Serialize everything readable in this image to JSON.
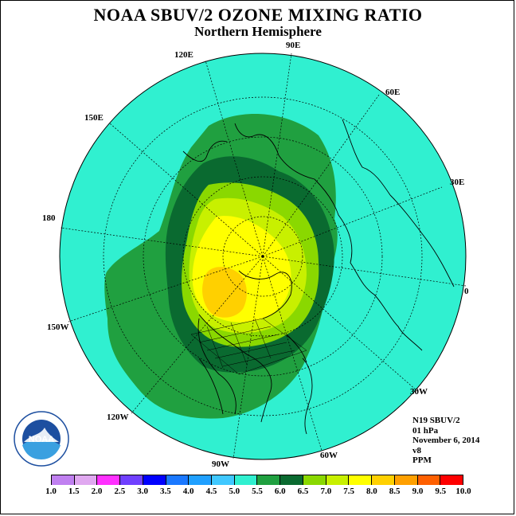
{
  "title": "NOAA SBUV/2 OZONE MIXING RATIO",
  "subtitle": "Northern Hemisphere",
  "longitudes": {
    "lon_90e": "90E",
    "lon_60e": "60E",
    "lon_30e": "30E",
    "lon_0": "0",
    "lon_30w": "30W",
    "lon_60w": "60W",
    "lon_90w": "90W",
    "lon_120w": "120W",
    "lon_150w": "150W",
    "lon_180": "180",
    "lon_150e": "150E",
    "lon_120e": "120E"
  },
  "info": {
    "satellite": "N19 SBUV/2",
    "level": "01 hPa",
    "date": "November 6, 2014",
    "version": "v8",
    "units": "PPM"
  },
  "legend": {
    "labels": [
      "1.0",
      "1.5",
      "2.0",
      "2.5",
      "3.0",
      "3.5",
      "4.0",
      "4.5",
      "5.0",
      "5.5",
      "6.0",
      "6.5",
      "7.0",
      "7.5",
      "8.0",
      "8.5",
      "9.0",
      "9.5",
      "10.0"
    ],
    "colors": [
      "#c080f0",
      "#e0a8f0",
      "#ff30ff",
      "#7040ff",
      "#0000ff",
      "#1a78ff",
      "#20a0ff",
      "#40c8ff",
      "#30f0d0",
      "#20a040",
      "#0a6a30",
      "#8ad800",
      "#c8f000",
      "#ffff00",
      "#ffd000",
      "#ffa000",
      "#ff6000",
      "#ff0000",
      "#8b5a3c"
    ]
  },
  "logo_text": "NOAA",
  "colors": {
    "ocean_band": "#30f0d0",
    "ring_5_5": "#20a040",
    "ring_6_0": "#0a6a30",
    "ring_6_5": "#8ad800",
    "ring_7_0": "#c8f000",
    "ring_7_5": "#ffff00",
    "ring_8_0": "#ffd000"
  }
}
